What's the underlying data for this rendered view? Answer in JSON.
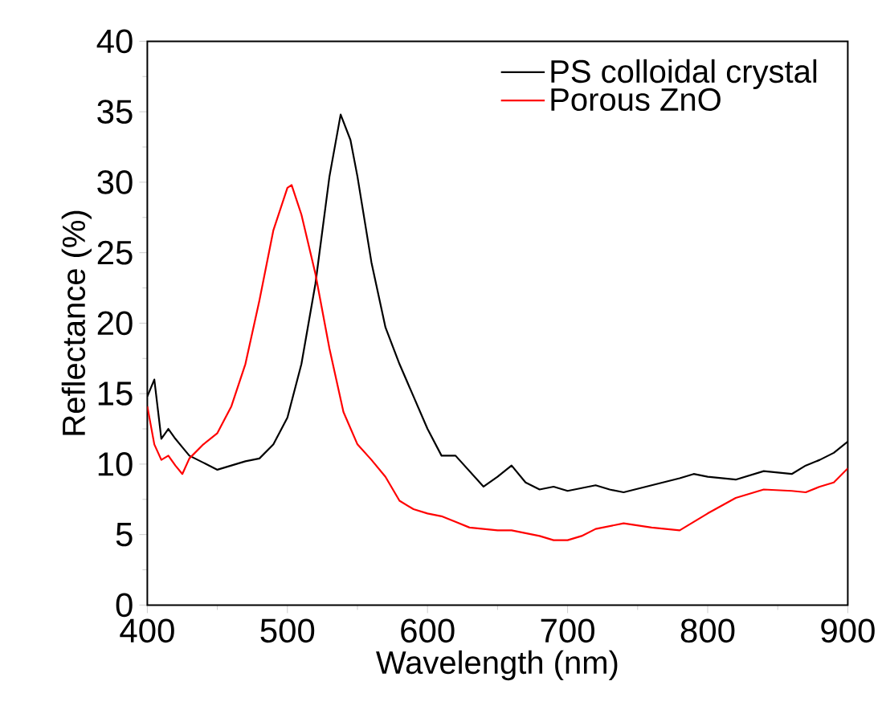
{
  "chart_data": {
    "type": "line",
    "xlabel": "Wavelength (nm)",
    "ylabel": "Reflectance (%)",
    "xlim": [
      400,
      900
    ],
    "ylim": [
      0,
      40
    ],
    "xticks": [
      400,
      500,
      600,
      700,
      800,
      900
    ],
    "yticks": [
      0,
      5,
      10,
      15,
      20,
      25,
      30,
      35,
      40
    ],
    "grid": false,
    "legend": "top right",
    "marker": "none",
    "line_style": "solid",
    "series": [
      {
        "name": "PS colloidal crystal",
        "color": "#000000",
        "x": [
          400,
          405,
          410,
          415,
          420,
          425,
          430,
          440,
          450,
          460,
          470,
          480,
          490,
          500,
          510,
          520,
          530,
          538,
          545,
          550,
          560,
          570,
          580,
          590,
          600,
          610,
          620,
          630,
          640,
          650,
          660,
          670,
          680,
          690,
          700,
          710,
          720,
          730,
          740,
          760,
          780,
          790,
          800,
          820,
          840,
          860,
          870,
          880,
          890,
          900
        ],
        "values": [
          14.8,
          16,
          11.8,
          12.5,
          11.8,
          11.2,
          10.6,
          10.1,
          9.6,
          9.9,
          10.2,
          10.4,
          11.4,
          13.3,
          17.1,
          22.8,
          30.4,
          34.8,
          33,
          30.4,
          24.3,
          19.7,
          17.1,
          14.8,
          12.5,
          10.6,
          10.6,
          9.5,
          8.4,
          9.1,
          9.9,
          8.7,
          8.2,
          8.4,
          8.1,
          8.3,
          8.5,
          8.2,
          8.0,
          8.5,
          9.0,
          9.3,
          9.1,
          8.9,
          9.5,
          9.3,
          9.9,
          10.3,
          10.8,
          11.6
        ]
      },
      {
        "name": "Porous ZnO",
        "color": "#ff0000",
        "x": [
          400,
          405,
          410,
          415,
          420,
          425,
          430,
          440,
          450,
          460,
          470,
          480,
          490,
          500,
          503,
          510,
          520,
          530,
          540,
          550,
          560,
          570,
          580,
          590,
          600,
          610,
          620,
          630,
          640,
          650,
          660,
          680,
          690,
          700,
          710,
          720,
          740,
          760,
          780,
          790,
          800,
          820,
          840,
          860,
          870,
          880,
          890,
          900
        ],
        "values": [
          14.1,
          11.4,
          10.3,
          10.6,
          9.9,
          9.3,
          10.4,
          11.4,
          12.2,
          14.1,
          17.1,
          21.6,
          26.6,
          29.6,
          29.8,
          27.7,
          23.5,
          18.2,
          13.7,
          11.4,
          10.3,
          9.1,
          7.4,
          6.8,
          6.5,
          6.3,
          5.9,
          5.5,
          5.4,
          5.3,
          5.3,
          4.9,
          4.6,
          4.6,
          4.9,
          5.4,
          5.8,
          5.5,
          5.3,
          5.9,
          6.5,
          7.6,
          8.2,
          8.1,
          8.0,
          8.4,
          8.7,
          9.7
        ]
      }
    ]
  }
}
